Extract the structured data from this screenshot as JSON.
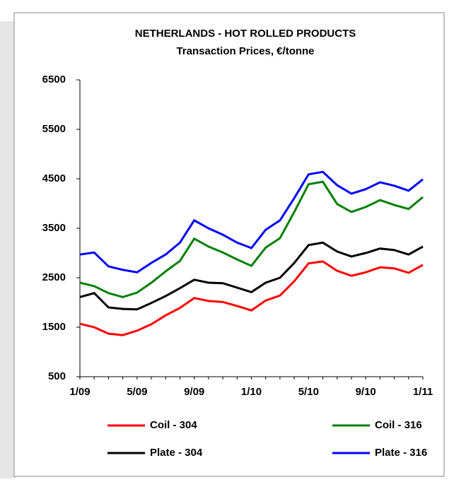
{
  "chart_data": {
    "type": "line",
    "title": "NETHERLANDS - HOT ROLLED PRODUCTS",
    "subtitle": "Transaction Prices, €/tonne",
    "categories": [
      "1/09",
      null,
      null,
      null,
      "5/09",
      null,
      null,
      null,
      "9/09",
      null,
      null,
      null,
      "1/10",
      null,
      null,
      null,
      "5/10",
      null,
      null,
      null,
      "9/10",
      null,
      null,
      null,
      "1/11"
    ],
    "series": [
      {
        "name": "Coil - 304",
        "color": "#ff0000",
        "values": [
          1570,
          1500,
          1370,
          1340,
          1430,
          1560,
          1740,
          1890,
          2090,
          2030,
          2010,
          1930,
          1840,
          2040,
          2140,
          2430,
          2790,
          2830,
          2640,
          2540,
          2610,
          2710,
          2690,
          2600,
          2760
        ]
      },
      {
        "name": "Coil - 316",
        "color": "#008000",
        "values": [
          2400,
          2330,
          2190,
          2110,
          2200,
          2400,
          2630,
          2840,
          3290,
          3130,
          3010,
          2870,
          2740,
          3110,
          3300,
          3830,
          4390,
          4440,
          3990,
          3830,
          3930,
          4070,
          3970,
          3890,
          4130
        ]
      },
      {
        "name": "Plate - 304",
        "color": "#000000",
        "values": [
          2110,
          2190,
          1900,
          1870,
          1860,
          1990,
          2130,
          2290,
          2460,
          2400,
          2390,
          2300,
          2210,
          2400,
          2500,
          2800,
          3160,
          3210,
          3030,
          2930,
          3000,
          3090,
          3060,
          2970,
          3130
        ]
      },
      {
        "name": "Plate - 316",
        "color": "#0000ff",
        "values": [
          2970,
          3010,
          2730,
          2660,
          2610,
          2800,
          2970,
          3210,
          3660,
          3500,
          3370,
          3210,
          3100,
          3470,
          3660,
          4110,
          4590,
          4640,
          4370,
          4200,
          4290,
          4430,
          4360,
          4260,
          4490
        ]
      }
    ],
    "ylim": [
      500,
      6500
    ],
    "yticks": [
      500,
      1500,
      2500,
      3500,
      4500,
      5500,
      6500
    ]
  }
}
